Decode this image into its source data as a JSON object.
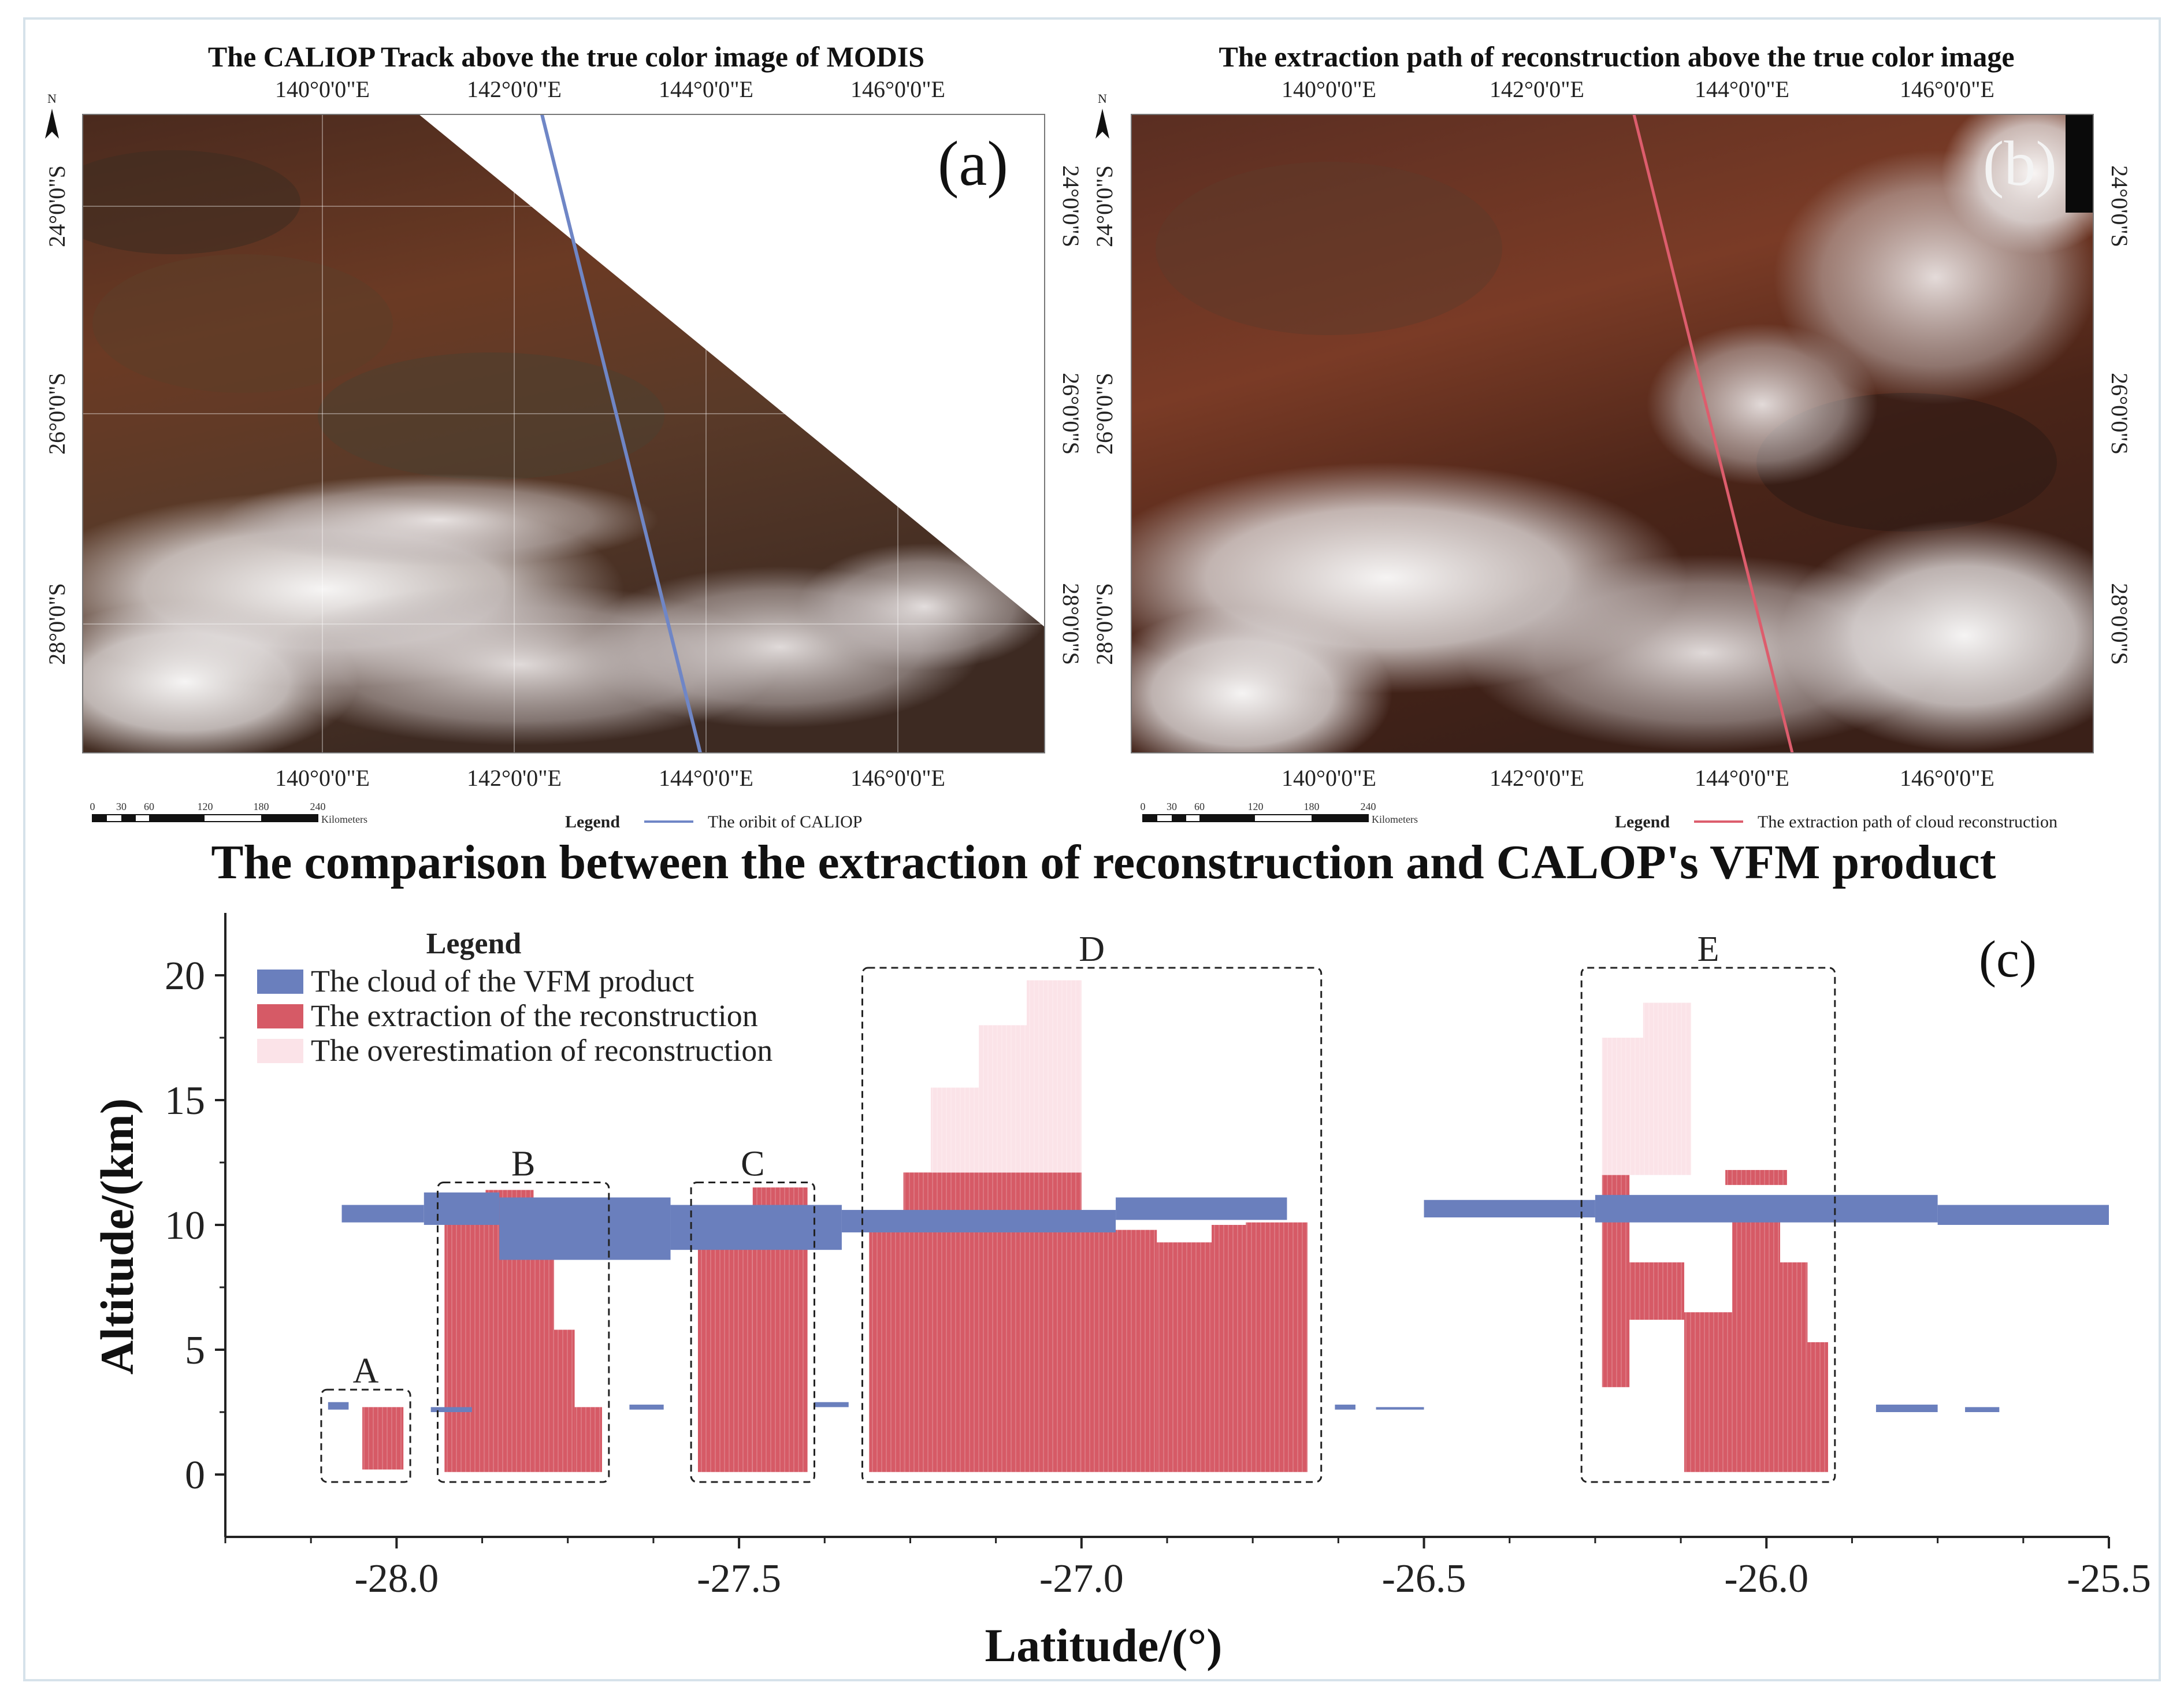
{
  "panel_a": {
    "title": "The CALIOP Track above the true color image of MODIS",
    "label": "(a)",
    "lon_ticks": [
      "140°0'0\"E",
      "142°0'0\"E",
      "144°0'0\"E",
      "146°0'0\"E"
    ],
    "lat_ticks": [
      "24°0'0\"S",
      "26°0'0\"S",
      "28°0'0\"S"
    ],
    "north": "N",
    "scale_ticks": [
      "0",
      "30",
      "60",
      "120",
      "180",
      "240"
    ],
    "scale_unit": "Kilometers",
    "legend_title": "Legend",
    "legend_item": "The oribit of CALIOP",
    "line_color": "#6f86c6"
  },
  "panel_b": {
    "title": "The extraction path of reconstruction above the true color image",
    "label": "(b)",
    "lon_ticks": [
      "140°0'0\"E",
      "142°0'0\"E",
      "144°0'0\"E",
      "146°0'0\"E"
    ],
    "lat_ticks": [
      "24°0'0\"S",
      "26°0'0\"S",
      "28°0'0\"S"
    ],
    "north": "N",
    "scale_ticks": [
      "0",
      "30",
      "60",
      "120",
      "180",
      "240"
    ],
    "scale_unit": "Kilometers",
    "legend_title": "Legend",
    "legend_item": "The extraction path of cloud reconstruction",
    "line_color": "#dd5d6d"
  },
  "chart_data": {
    "type": "bar",
    "title": "The comparison between the extraction of reconstruction and CALOP's VFM product",
    "panel_label": "(c)",
    "xlabel": "Latitude/(°)",
    "ylabel": "Altitude/(km)",
    "xlim": [
      -28.25,
      -25.5
    ],
    "ylim": [
      -2.5,
      22.5
    ],
    "xticks": [
      -28.0,
      -27.5,
      -27.0,
      -26.5,
      -26.0,
      -25.5
    ],
    "xtick_labels": [
      "-28.0",
      "-27.5",
      "-27.0",
      "-26.5",
      "-26.0",
      "-25.5"
    ],
    "yticks": [
      0,
      5,
      10,
      15,
      20
    ],
    "ytick_labels": [
      "0",
      "5",
      "10",
      "15",
      "20"
    ],
    "legend": {
      "title": "Legend",
      "items": [
        {
          "name": "The cloud of the VFM product",
          "color": "#6a7fbd"
        },
        {
          "name": "The extraction of the reconstruction",
          "color": "#d65a66"
        },
        {
          "name": "The overestimation of reconstruction",
          "color": "#fbe3e8"
        }
      ]
    },
    "regions": [
      {
        "name": "A",
        "x0": -28.11,
        "x1": -27.98,
        "y0": -0.3,
        "y1": 3.4
      },
      {
        "name": "B",
        "x0": -27.94,
        "x1": -27.69,
        "y0": -0.3,
        "y1": 11.7
      },
      {
        "name": "C",
        "x0": -27.57,
        "x1": -27.39,
        "y0": -0.3,
        "y1": 11.7
      },
      {
        "name": "D",
        "x0": -27.32,
        "x1": -26.65,
        "y0": -0.3,
        "y1": 20.3
      },
      {
        "name": "E",
        "x0": -26.27,
        "x1": -25.9,
        "y0": -0.3,
        "y1": 20.3
      }
    ],
    "series": [
      {
        "name": "The extraction of the reconstruction",
        "color": "#d65a66",
        "bars": [
          {
            "x0": -28.05,
            "x1": -27.99,
            "y0": 0.2,
            "y1": 2.7
          },
          {
            "x0": -27.93,
            "x1": -27.87,
            "y0": 0.1,
            "y1": 10.1
          },
          {
            "x0": -27.87,
            "x1": -27.8,
            "y0": 0.1,
            "y1": 11.4
          },
          {
            "x0": -27.8,
            "x1": -27.77,
            "y0": 0.1,
            "y1": 9.3
          },
          {
            "x0": -27.77,
            "x1": -27.74,
            "y0": 0.1,
            "y1": 5.8
          },
          {
            "x0": -27.74,
            "x1": -27.7,
            "y0": 0.1,
            "y1": 2.7
          },
          {
            "x0": -27.56,
            "x1": -27.48,
            "y0": 0.1,
            "y1": 10.6
          },
          {
            "x0": -27.48,
            "x1": -27.4,
            "y0": 0.1,
            "y1": 11.5
          },
          {
            "x0": -27.31,
            "x1": -27.26,
            "y0": 0.1,
            "y1": 10.0
          },
          {
            "x0": -27.26,
            "x1": -27.0,
            "y0": 0.1,
            "y1": 12.1
          },
          {
            "x0": -27.0,
            "x1": -26.89,
            "y0": 0.1,
            "y1": 9.8
          },
          {
            "x0": -26.89,
            "x1": -26.81,
            "y0": 0.1,
            "y1": 9.3
          },
          {
            "x0": -26.81,
            "x1": -26.76,
            "y0": 0.1,
            "y1": 10.0
          },
          {
            "x0": -26.76,
            "x1": -26.67,
            "y0": 0.1,
            "y1": 10.1
          },
          {
            "x0": -26.24,
            "x1": -26.2,
            "y0": 3.5,
            "y1": 12.0
          },
          {
            "x0": -26.2,
            "x1": -26.12,
            "y0": 6.2,
            "y1": 8.5
          },
          {
            "x0": -26.12,
            "x1": -26.05,
            "y0": 0.1,
            "y1": 6.5
          },
          {
            "x0": -26.05,
            "x1": -25.98,
            "y0": 0.1,
            "y1": 10.5
          },
          {
            "x0": -25.98,
            "x1": -25.94,
            "y0": 0.1,
            "y1": 8.5
          },
          {
            "x0": -25.94,
            "x1": -25.91,
            "y0": 0.1,
            "y1": 5.3
          },
          {
            "x0": -26.06,
            "x1": -25.97,
            "y0": 11.6,
            "y1": 12.2
          }
        ]
      },
      {
        "name": "The overestimation of reconstruction",
        "color": "#fbe3e8",
        "bars": [
          {
            "x0": -27.22,
            "x1": -27.15,
            "y0": 12.1,
            "y1": 15.5
          },
          {
            "x0": -27.15,
            "x1": -27.08,
            "y0": 12.1,
            "y1": 18.0
          },
          {
            "x0": -27.08,
            "x1": -27.0,
            "y0": 12.1,
            "y1": 19.8
          },
          {
            "x0": -26.24,
            "x1": -26.18,
            "y0": 12.0,
            "y1": 17.5
          },
          {
            "x0": -26.18,
            "x1": -26.11,
            "y0": 12.0,
            "y1": 18.9
          }
        ]
      },
      {
        "name": "The cloud of the VFM product",
        "color": "#6a7fbd",
        "bands": [
          {
            "x0": -27.96,
            "x1": -27.85,
            "y0": 10.0,
            "y1": 11.3
          },
          {
            "x0": -28.08,
            "x1": -27.96,
            "y0": 10.1,
            "y1": 10.8
          },
          {
            "x0": -27.85,
            "x1": -27.6,
            "y0": 8.6,
            "y1": 11.1
          },
          {
            "x0": -27.6,
            "x1": -27.35,
            "y0": 9.0,
            "y1": 10.8
          },
          {
            "x0": -27.35,
            "x1": -26.95,
            "y0": 9.7,
            "y1": 10.6
          },
          {
            "x0": -26.95,
            "x1": -26.7,
            "y0": 10.2,
            "y1": 11.1
          },
          {
            "x0": -26.5,
            "x1": -26.25,
            "y0": 10.3,
            "y1": 11.0
          },
          {
            "x0": -26.25,
            "x1": -25.75,
            "y0": 10.1,
            "y1": 11.2
          },
          {
            "x0": -25.75,
            "x1": -25.5,
            "y0": 10.0,
            "y1": 10.8
          },
          {
            "x0": -28.1,
            "x1": -28.07,
            "y0": 2.6,
            "y1": 2.9
          },
          {
            "x0": -27.95,
            "x1": -27.89,
            "y0": 2.5,
            "y1": 2.7
          },
          {
            "x0": -27.66,
            "x1": -27.61,
            "y0": 2.6,
            "y1": 2.8
          },
          {
            "x0": -27.39,
            "x1": -27.34,
            "y0": 2.7,
            "y1": 2.9
          },
          {
            "x0": -26.63,
            "x1": -26.6,
            "y0": 2.6,
            "y1": 2.8
          },
          {
            "x0": -26.57,
            "x1": -26.5,
            "y0": 2.6,
            "y1": 2.7
          },
          {
            "x0": -25.84,
            "x1": -25.75,
            "y0": 2.5,
            "y1": 2.8
          },
          {
            "x0": -25.71,
            "x1": -25.66,
            "y0": 2.5,
            "y1": 2.7
          }
        ]
      }
    ]
  }
}
